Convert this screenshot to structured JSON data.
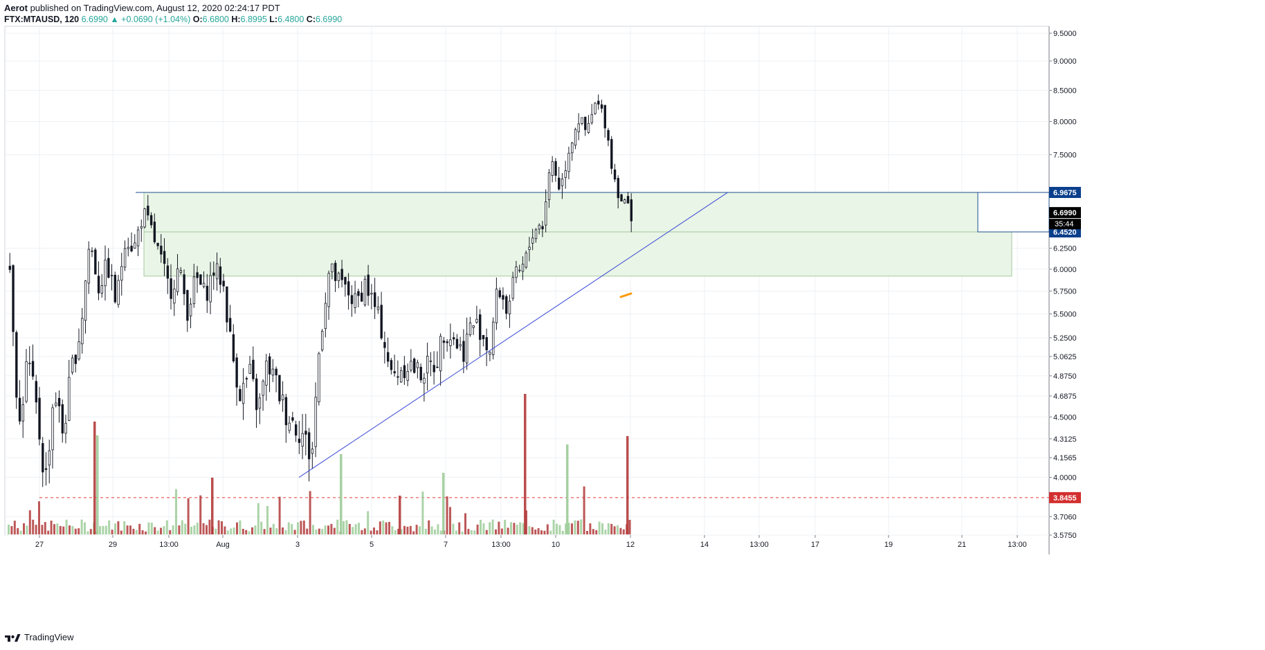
{
  "header": {
    "author": "Aerot",
    "published": " published on TradingView.com, August 12, 2020 02:24:17 PDT",
    "symbol": "FTX:MTAUSD, 120",
    "price": "6.6990",
    "change": "▲ +0.0690 (+1.04%)",
    "o_label": "O:",
    "o": "6.6800",
    "h_label": "H:",
    "h": "6.8995",
    "l_label": "L:",
    "l": "6.4800",
    "c_label": "C:",
    "c": "6.6990"
  },
  "brand": {
    "name": "TradingView",
    "icon": "tradingview-logo-icon"
  },
  "colors": {
    "up": "#26a69a",
    "down": "#ef5350",
    "candle_body": "#131722",
    "zone_fill": "#e9f5e6",
    "zone_border": "#a5c9a0",
    "trendline": "#3a4bd6",
    "price_tag": "#000000",
    "level_tag": "#0b3f8c",
    "dashed_level": "#e53935",
    "vol_up": "#9ccc98",
    "vol_down": "#b23a3a",
    "marker": "#ff9800"
  },
  "chart_data": {
    "type": "candlestick",
    "title": "FTX:MTAUSD, 120",
    "y_axis": {
      "scale": "log",
      "range": [
        3.575,
        9.5
      ],
      "ticks": [
        "9.5000",
        "9.0000",
        "8.5000",
        "8.0000",
        "7.5000",
        "6.2500",
        "6.0000",
        "5.7500",
        "5.5000",
        "5.2500",
        "5.0625",
        "4.8750",
        "4.6875",
        "4.5000",
        "4.3125",
        "4.1565",
        "4.0000",
        "3.7060",
        "3.5750"
      ]
    },
    "x_axis": {
      "ticks": [
        "27",
        "29",
        "13:00",
        "Aug",
        "3",
        "5",
        "7",
        "13:00",
        "10",
        "12",
        "14",
        "13:00",
        "17",
        "19",
        "21",
        "13:00"
      ]
    },
    "price_tags": {
      "last": "6.6990",
      "countdown": "35:44",
      "zone_top": "6.9675",
      "zone_bottom": "6.4520",
      "dashed_level": "3.8455"
    },
    "zones": [
      {
        "top": 6.9675,
        "bottom": 6.452,
        "from": "29",
        "to": "21 13:00"
      },
      {
        "top": 6.452,
        "bottom": 5.92,
        "from": "29",
        "to": "21 13:00"
      }
    ],
    "trendline": {
      "from": [
        "3",
        4.0
      ],
      "to": [
        "14",
        6.97
      ]
    },
    "dashed_level": 3.8455,
    "candles_close_path": [
      6.02,
      4.35,
      5.05,
      4.55,
      3.95,
      4.75,
      4.35,
      4.95,
      5.35,
      6.35,
      5.8,
      6.05,
      5.6,
      6.4,
      6.25,
      6.7,
      6.45,
      6.1,
      5.75,
      6.0,
      5.55,
      5.9,
      5.7,
      6.0,
      5.85,
      5.1,
      4.7,
      4.9,
      4.55,
      5.0,
      4.8,
      4.55,
      4.45,
      4.35,
      4.15,
      5.3,
      6.0,
      5.85,
      5.75,
      5.6,
      5.85,
      5.6,
      5.3,
      4.85,
      4.95,
      5.0,
      4.9,
      4.95,
      5.0,
      5.35,
      5.25,
      5.1,
      5.4,
      5.35,
      5.1,
      5.8,
      5.55,
      5.9,
      6.05,
      6.5,
      6.55,
      7.45,
      7.0,
      7.6,
      8.05,
      7.8,
      8.3,
      8.05,
      7.2,
      6.85,
      6.7
    ]
  }
}
